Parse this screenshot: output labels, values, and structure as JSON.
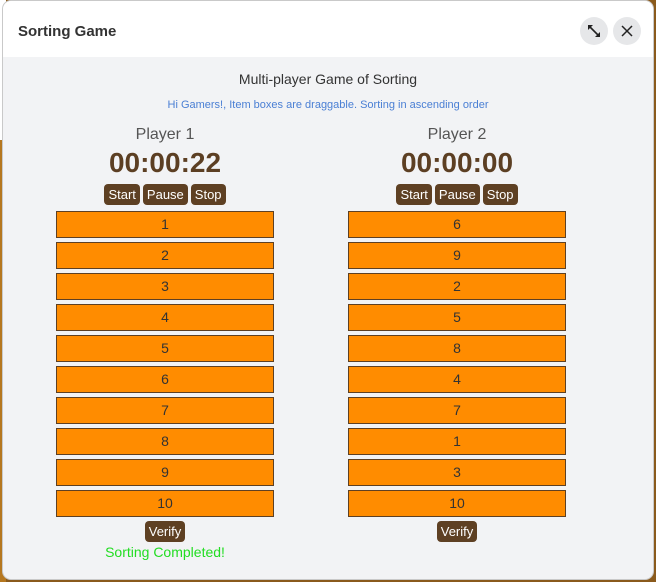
{
  "window": {
    "title": "Sorting Game",
    "expand_icon": "expand-arrows-icon",
    "close_icon": "close-x-icon"
  },
  "game": {
    "title": "Multi-player Game of Sorting",
    "info": "Hi Gamers!, Item boxes are draggable. Sorting in ascending order"
  },
  "controls": {
    "start": "Start",
    "pause": "Pause",
    "stop": "Stop",
    "verify": "Verify"
  },
  "players": [
    {
      "name": "Player 1",
      "timer": "00:00:22",
      "items": [
        "1",
        "2",
        "3",
        "4",
        "5",
        "6",
        "7",
        "8",
        "9",
        "10"
      ],
      "status": "Sorting Completed!"
    },
    {
      "name": "Player 2",
      "timer": "00:00:00",
      "items": [
        "6",
        "9",
        "2",
        "5",
        "8",
        "4",
        "7",
        "1",
        "3",
        "10"
      ],
      "status": ""
    }
  ],
  "colors": {
    "item_bg": "#ff8c00",
    "button_bg": "#5e4023",
    "timer_text": "#5c3f23",
    "info_text": "#4a7fd4",
    "status_text": "#22dd22"
  }
}
